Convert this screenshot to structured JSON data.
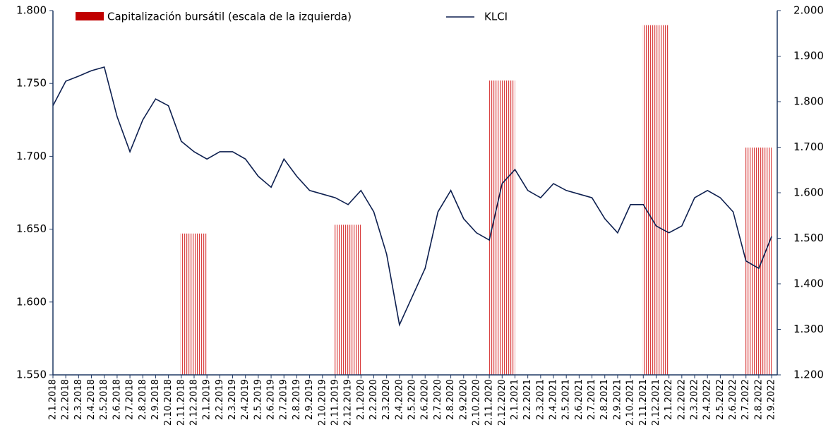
{
  "chart_data": {
    "type": "bar-line",
    "categories": [
      "2.1.2018",
      "2.2.2018",
      "2.3.2018",
      "2.4.2018",
      "2.5.2018",
      "2.6.2018",
      "2.7.2018",
      "2.8.2018",
      "2.9.2018",
      "2.10.2018",
      "2.11.2018",
      "2.12.2018",
      "2.1.2019",
      "2.2.2019",
      "2.3.2019",
      "2.4.2019",
      "2.5.2019",
      "2.6.2019",
      "2.7.2019",
      "2.8.2019",
      "2.9.2019",
      "2.10.2019",
      "2.11.2019",
      "2.12.2019",
      "2.1.2020",
      "2.2.2020",
      "2.3.2020",
      "2.4.2020",
      "2.5.2020",
      "2.6.2020",
      "2.7.2020",
      "2.8.2020",
      "2.9.2020",
      "2.10.2020",
      "2.11.2020",
      "2.12.2020",
      "2.1.2021",
      "2.2.2021",
      "2.3.2021",
      "2.4.2021",
      "2.5.2021",
      "2.6.2021",
      "2.7.2021",
      "2.8.2021",
      "2.9.2021",
      "2.10.2021",
      "2.11.2021",
      "2.12.2021",
      "2.1.2022",
      "2.2.2022",
      "2.3.2022",
      "2.4.2022",
      "2.5.2022",
      "2.6.2022",
      "2.7.2022",
      "2.8.2022",
      "2.9.2022"
    ],
    "series": [
      {
        "name": "Capitalización bursátil (escala de la izquierda)",
        "color": "#c00000",
        "type": "bar",
        "axis": "y",
        "values": [
          null,
          null,
          null,
          null,
          null,
          null,
          null,
          null,
          null,
          null,
          1647,
          null,
          null,
          null,
          null,
          null,
          null,
          null,
          null,
          null,
          null,
          null,
          1653,
          null,
          null,
          null,
          null,
          null,
          null,
          null,
          null,
          null,
          null,
          null,
          1752,
          null,
          null,
          null,
          null,
          null,
          null,
          null,
          null,
          null,
          null,
          null,
          1790,
          null,
          null,
          null,
          null,
          null,
          null,
          null,
          1706,
          null,
          null
        ]
      },
      {
        "name": "KLCI",
        "color": "#0d1f4f",
        "type": "line",
        "axis": "y2",
        "values": [
          1791,
          1845,
          1856,
          1868,
          1876,
          1767,
          1690,
          1760,
          1806,
          1791,
          1713,
          1690,
          1674,
          1690,
          1690,
          1674,
          1636,
          1612,
          1674,
          1636,
          1605,
          1597,
          1589,
          1574,
          1605,
          1558,
          1465,
          1310,
          1372,
          1434,
          1558,
          1605,
          1543,
          1512,
          1496,
          1620,
          1651,
          1605,
          1589,
          1620,
          1605,
          1597,
          1589,
          1543,
          1512,
          1574,
          1574,
          1527,
          1512,
          1527,
          1589,
          1605,
          1589,
          1558,
          1450,
          1434,
          1504
        ]
      }
    ],
    "ylim": [
      1550,
      1800
    ],
    "yticks": [
      {
        "value": 1550,
        "label": "1.550"
      },
      {
        "value": 1600,
        "label": "1.600"
      },
      {
        "value": 1650,
        "label": "1.650"
      },
      {
        "value": 1700,
        "label": "1.700"
      },
      {
        "value": 1750,
        "label": "1.750"
      },
      {
        "value": 1800,
        "label": "1.800"
      }
    ],
    "y2lim": [
      1200,
      2000
    ],
    "y2ticks": [
      {
        "value": 1200,
        "label": "1.200"
      },
      {
        "value": 1300,
        "label": "1.300"
      },
      {
        "value": 1400,
        "label": "1.400"
      },
      {
        "value": 1500,
        "label": "1.500"
      },
      {
        "value": 1600,
        "label": "1.600"
      },
      {
        "value": 1700,
        "label": "1.700"
      },
      {
        "value": 1800,
        "label": "1.800"
      },
      {
        "value": 1900,
        "label": "1.900"
      },
      {
        "value": 2000,
        "label": "2.000"
      }
    ]
  }
}
